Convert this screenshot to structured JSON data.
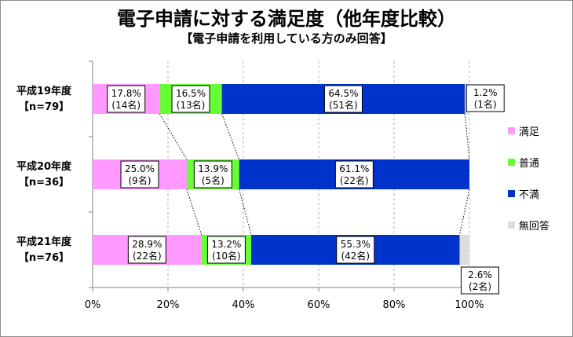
{
  "chart_data": {
    "type": "bar",
    "orientation": "horizontal",
    "stacked": true,
    "title": "電子申請に対する満足度（他年度比較）",
    "subtitle": "【電子申請を利用している方のみ回答】",
    "categories": [
      {
        "line1": "平成19年度",
        "line2": "【n=79】"
      },
      {
        "line1": "平成20年度",
        "line2": "【n=36】"
      },
      {
        "line1": "平成21年度",
        "line2": "【n=76】"
      }
    ],
    "series": [
      {
        "name": "満足",
        "color": "#ff99ff",
        "values": [
          17.8,
          25.0,
          28.9
        ],
        "labels": [
          [
            "17.8%",
            "(14名)"
          ],
          [
            "25.0%",
            "(9名)"
          ],
          [
            "28.9%",
            "(22名)"
          ]
        ]
      },
      {
        "name": "普通",
        "color": "#66ff33",
        "values": [
          16.5,
          13.9,
          13.2
        ],
        "labels": [
          [
            "16.5%",
            "(13名)"
          ],
          [
            "13.9%",
            "(5名)"
          ],
          [
            "13.2%",
            "(10名)"
          ]
        ]
      },
      {
        "name": "不満",
        "color": "#0033cc",
        "values": [
          64.5,
          61.1,
          55.3
        ],
        "labels": [
          [
            "64.5%",
            "(51名)"
          ],
          [
            "61.1%",
            "(22名)"
          ],
          [
            "55.3%",
            "(42名)"
          ]
        ]
      },
      {
        "name": "無回答",
        "color": "#dddddd",
        "values": [
          1.2,
          0,
          2.6
        ],
        "labels": [
          [
            "1.2%",
            "(1名)"
          ],
          null,
          [
            "2.6%",
            "(2名)"
          ]
        ]
      }
    ],
    "xlim": [
      0,
      100
    ],
    "xticks": [
      "0%",
      "20%",
      "40%",
      "60%",
      "80%",
      "100%"
    ],
    "grid": true,
    "legend_position": "right"
  }
}
